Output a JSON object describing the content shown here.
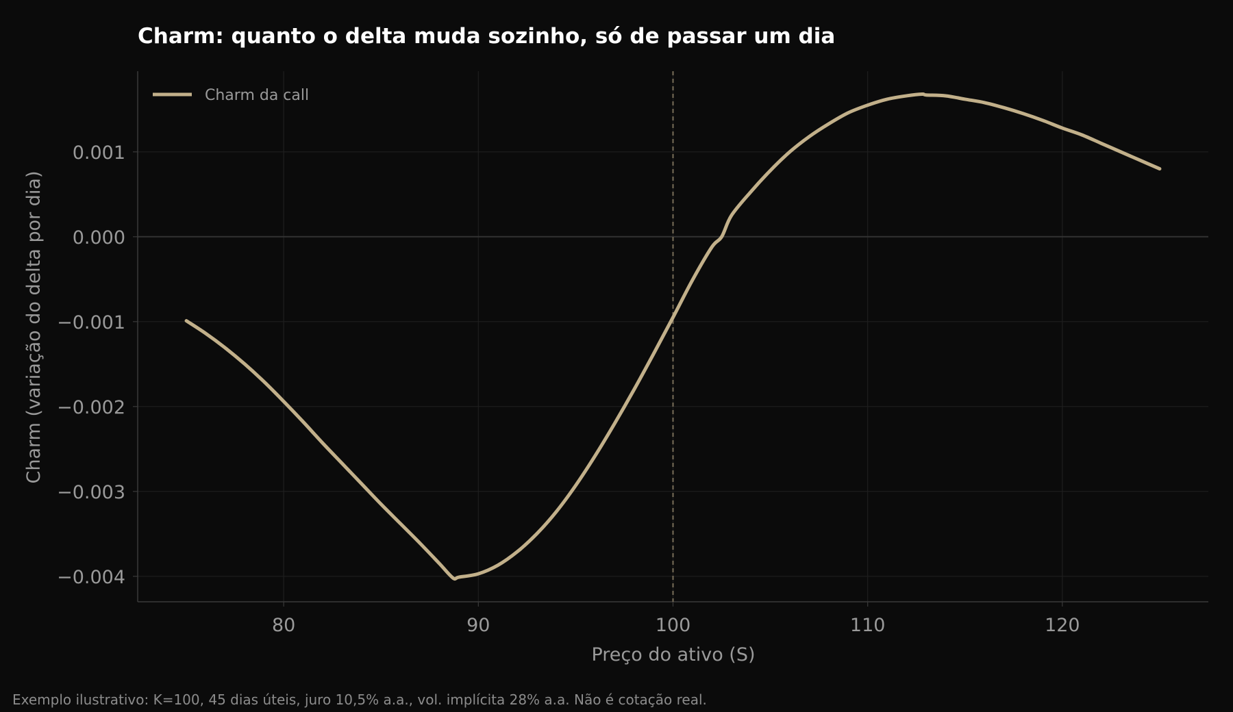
{
  "chart_data": {
    "type": "line",
    "title": "Charm: quanto o delta muda sozinho, só de passar um dia",
    "xlabel": "Preço do ativo (S)",
    "ylabel": "Charm (variação do delta por dia)",
    "xlim": [
      72.5,
      127.5
    ],
    "ylim": [
      -0.0043,
      0.00195
    ],
    "xticks": [
      80,
      90,
      100,
      110,
      120
    ],
    "xtick_labels": [
      "80",
      "90",
      "100",
      "110",
      "120"
    ],
    "yticks": [
      0.001,
      0.0,
      -0.001,
      -0.002,
      -0.003,
      -0.004
    ],
    "ytick_labels": [
      "0.001",
      "0.000",
      "−0.001",
      "−0.002",
      "−0.003",
      "−0.004"
    ],
    "grid": true,
    "zero_line": 0,
    "reference_line_x": 100,
    "legend": {
      "placement": "top-left",
      "entries": [
        "Charm da call"
      ]
    },
    "series": [
      {
        "name": "Charm da call",
        "color": "#c2b08a",
        "x": [
          75,
          76,
          77,
          78,
          79,
          80,
          81,
          82,
          83,
          84,
          85,
          86,
          87,
          88,
          88.7,
          89,
          90,
          91,
          92,
          93,
          94,
          95,
          96,
          97,
          98,
          99,
          100,
          101,
          102,
          102.5,
          103,
          104,
          105,
          106,
          107,
          108,
          109,
          110,
          111,
          112,
          112.8,
          113,
          114,
          115,
          116,
          117,
          118,
          119,
          120,
          121,
          122,
          123,
          124,
          125
        ],
        "y": [
          -0.00099,
          -0.00114,
          -0.00131,
          -0.0015,
          -0.00171,
          -0.00194,
          -0.00218,
          -0.00243,
          -0.00267,
          -0.00291,
          -0.00315,
          -0.00338,
          -0.00361,
          -0.00385,
          -0.00402,
          -0.00401,
          -0.00397,
          -0.00387,
          -0.00371,
          -0.0035,
          -0.00324,
          -0.00293,
          -0.00258,
          -0.0022,
          -0.0018,
          -0.00138,
          -0.00095,
          -0.00051,
          -0.00012,
          0.0,
          0.00025,
          0.00053,
          0.00078,
          0.001,
          0.00118,
          0.00133,
          0.00146,
          0.00155,
          0.00162,
          0.00166,
          0.00168,
          0.00167,
          0.00166,
          0.00162,
          0.00158,
          0.00152,
          0.00145,
          0.00137,
          0.00128,
          0.0012,
          0.0011,
          0.001,
          0.0009,
          0.0008
        ]
      }
    ],
    "footnote": "Exemplo ilustrativo: K=100, 45 dias úteis, juro 10,5% a.a., vol. implícita 28% a.a. Não é cotação real.",
    "colors": {
      "background": "#0b0b0b",
      "line": "#c2b08a",
      "grid": "#1f1f1f",
      "axis": "#3a3a3a",
      "text": "#9a9a9a",
      "reference_line": "#7a6f5a"
    }
  }
}
